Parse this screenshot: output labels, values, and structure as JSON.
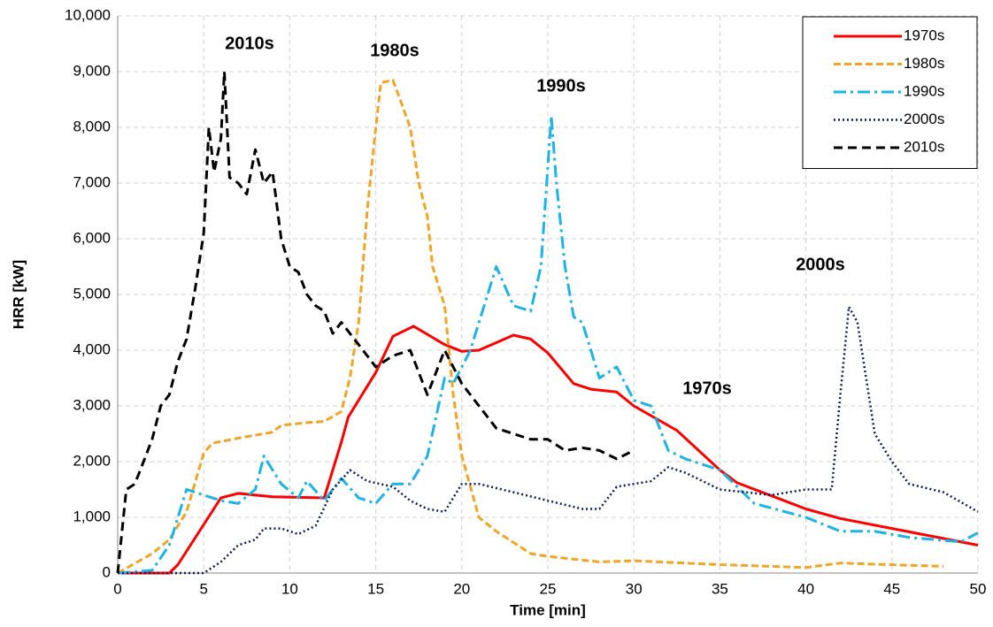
{
  "chart_data": {
    "type": "line",
    "xlabel": "Time [min]",
    "ylabel": "HRR [kW]",
    "xlim": [
      0,
      50
    ],
    "xticks": [
      0,
      5,
      10,
      15,
      20,
      25,
      30,
      35,
      40,
      45,
      50
    ],
    "ylim": [
      0,
      10000
    ],
    "yticks": [
      0,
      {
        "value": 1000,
        "label": "1,000"
      },
      {
        "value": 2000,
        "label": "2,000"
      },
      {
        "value": 3000,
        "label": "3,000"
      },
      {
        "value": 4000,
        "label": "4,000"
      },
      {
        "value": 5000,
        "label": "5,000"
      },
      {
        "value": 6000,
        "label": "6,000"
      },
      {
        "value": 7000,
        "label": "7,000"
      },
      {
        "value": 8000,
        "label": "8,000"
      },
      {
        "value": 9000,
        "label": "9,000"
      },
      {
        "value": 10000,
        "label": "10,000"
      }
    ],
    "grid": true,
    "legend": "upper right",
    "annotations": [
      "2010s",
      "1980s",
      "1990s",
      "2000s",
      "1970s"
    ],
    "series": [
      {
        "name": "1970s",
        "color": "#ff0000",
        "style": "solid",
        "x": [
          0,
          3,
          3.5,
          6,
          7,
          9,
          12,
          13,
          13.4,
          15,
          16,
          17.2,
          19,
          20,
          21,
          23,
          24,
          25,
          26.5,
          27.5,
          29,
          30,
          32.5,
          35,
          36,
          40,
          42,
          45,
          50
        ],
        "values": [
          0,
          0,
          150,
          1350,
          1430,
          1370,
          1350,
          2350,
          2800,
          3600,
          4250,
          4430,
          4100,
          3980,
          4000,
          4270,
          4200,
          3950,
          3400,
          3300,
          3250,
          3000,
          2560,
          1850,
          1620,
          1150,
          980,
          800,
          500
        ]
      },
      {
        "name": "1980s",
        "color": "#f4a424",
        "style": "dashed",
        "x": [
          0,
          2,
          3,
          4,
          5,
          5.5,
          7,
          9,
          9.5,
          11,
          12,
          13,
          13.5,
          14,
          14.5,
          15,
          15.3,
          16,
          17,
          17.5,
          18,
          18.3,
          19,
          19.5,
          20,
          21,
          22,
          23,
          24,
          25,
          28,
          30,
          35,
          40,
          42,
          48
        ],
        "values": [
          0,
          350,
          600,
          1100,
          2150,
          2330,
          2420,
          2530,
          2650,
          2700,
          2720,
          2900,
          3500,
          4500,
          6500,
          8000,
          8800,
          8850,
          8000,
          7000,
          6400,
          5500,
          4800,
          3200,
          2100,
          1000,
          750,
          550,
          350,
          300,
          200,
          220,
          150,
          100,
          180,
          120
        ]
      },
      {
        "name": "1990s",
        "color": "#1ab4e8",
        "style": "dashdot",
        "x": [
          0,
          2,
          3,
          4,
          5,
          6,
          7,
          8,
          8.5,
          9.5,
          10.5,
          11,
          12,
          13,
          14,
          15,
          16,
          17,
          18,
          19,
          19.5,
          20.5,
          21,
          22,
          23,
          24,
          24.6,
          25.2,
          25.5,
          26,
          26.5,
          27,
          28,
          29,
          30,
          31,
          32,
          33,
          35,
          37,
          40,
          42,
          44,
          46,
          49,
          50
        ],
        "values": [
          0,
          50,
          500,
          1500,
          1400,
          1300,
          1250,
          1500,
          2100,
          1600,
          1350,
          1650,
          1300,
          1700,
          1350,
          1250,
          1600,
          1600,
          2100,
          3500,
          3400,
          4000,
          4500,
          5500,
          4800,
          4700,
          5500,
          8200,
          7000,
          5500,
          4600,
          4500,
          3500,
          3700,
          3100,
          3000,
          2200,
          2050,
          1850,
          1250,
          1000,
          750,
          750,
          640,
          560,
          720
        ]
      },
      {
        "name": "2000s",
        "color": "#0e1c5c",
        "style": "dotted",
        "x": [
          0,
          5,
          6,
          7,
          8,
          8.5,
          9.5,
          10.5,
          11.5,
          12.5,
          13.5,
          14.5,
          16,
          17,
          18,
          19,
          20,
          21,
          23,
          25,
          27,
          28,
          29,
          31,
          32,
          33,
          35,
          38,
          40,
          41.5,
          42,
          42.5,
          43,
          44,
          45,
          46,
          48,
          50
        ],
        "values": [
          0,
          0,
          200,
          500,
          600,
          800,
          800,
          700,
          850,
          1500,
          1850,
          1650,
          1550,
          1300,
          1150,
          1100,
          1600,
          1600,
          1450,
          1300,
          1150,
          1150,
          1550,
          1650,
          1900,
          1800,
          1500,
          1400,
          1500,
          1500,
          3200,
          4780,
          4500,
          2500,
          2000,
          1600,
          1450,
          1100
        ]
      },
      {
        "name": "2010s",
        "color": "#000000",
        "style": "longdash",
        "x": [
          0,
          0.5,
          1,
          1.5,
          2,
          2.5,
          3,
          3.5,
          4,
          4.5,
          5,
          5.3,
          5.6,
          6,
          6.2,
          6.5,
          7,
          7.5,
          8,
          8.5,
          9,
          9.5,
          10,
          10.5,
          11,
          11.5,
          12,
          12.5,
          13,
          14,
          15,
          16,
          17,
          18,
          19,
          20,
          21,
          22,
          23,
          24,
          25,
          26,
          27,
          28,
          29,
          30
        ],
        "values": [
          0,
          1500,
          1600,
          2000,
          2400,
          3000,
          3200,
          3800,
          4200,
          5100,
          6100,
          8000,
          7200,
          7800,
          9000,
          7100,
          7000,
          6800,
          7600,
          7000,
          7200,
          6000,
          5500,
          5400,
          5000,
          4800,
          4700,
          4300,
          4500,
          4100,
          3700,
          3900,
          4000,
          3200,
          4000,
          3400,
          3000,
          2600,
          2500,
          2400,
          2400,
          2200,
          2250,
          2200,
          2050,
          2200
        ]
      }
    ]
  }
}
